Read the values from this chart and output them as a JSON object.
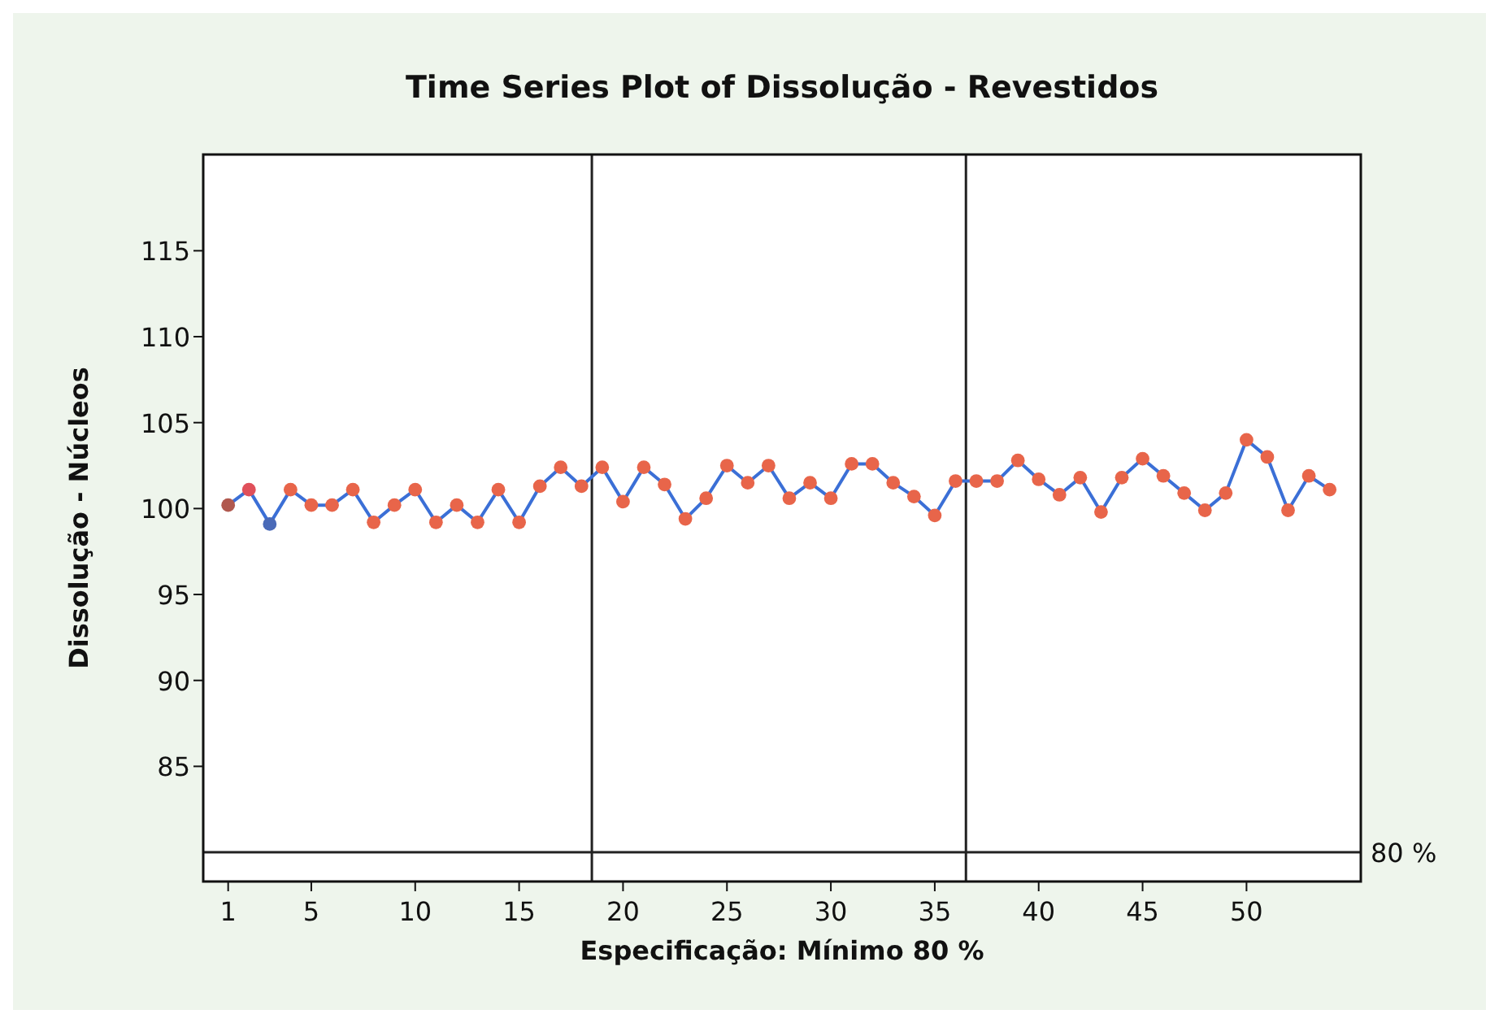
{
  "chart_data": {
    "type": "line",
    "title": "Time Series Plot of Dissolução - Revestidos",
    "xlabel": "Especificação: Mínimo 80 %",
    "ylabel": "Dissolução - Núcleos",
    "x": [
      1,
      2,
      3,
      4,
      5,
      6,
      7,
      8,
      9,
      10,
      11,
      12,
      13,
      14,
      15,
      16,
      17,
      18,
      19,
      20,
      21,
      22,
      23,
      24,
      25,
      26,
      27,
      28,
      29,
      30,
      31,
      32,
      33,
      34,
      35,
      36,
      37,
      38,
      39,
      40,
      41,
      42,
      43,
      44,
      45,
      46,
      47,
      48,
      49,
      50,
      51,
      52,
      53,
      54
    ],
    "series": [
      {
        "color": "#3b6fd6",
        "colors": [
          "#b0584e",
          "#e0505a",
          "#4a6ab8",
          "#e8654a",
          "#e8654a",
          "#e8654a",
          "#e8654a",
          "#e8654a",
          "#e8654a",
          "#e8654a",
          "#e8654a",
          "#e8654a",
          "#e8654a",
          "#e8654a",
          "#e8654a",
          "#e8654a",
          "#e8654a",
          "#e8654a",
          "#e8654a",
          "#e8654a",
          "#e8654a",
          "#e8654a",
          "#e8654a",
          "#e8654a",
          "#e8654a",
          "#e8654a",
          "#e8654a",
          "#e8654a",
          "#e8654a",
          "#e8654a",
          "#e8654a",
          "#e8654a",
          "#e8654a",
          "#e8654a",
          "#e8654a",
          "#e8654a",
          "#e8654a",
          "#e8654a",
          "#e8654a",
          "#e8654a",
          "#e8654a",
          "#e8654a",
          "#e8654a",
          "#e8654a",
          "#e8654a",
          "#e8654a",
          "#e8654a",
          "#e8654a",
          "#e8654a",
          "#e8654a",
          "#e8654a",
          "#e8654a",
          "#e8654a",
          "#e8654a"
        ],
        "values": [
          100.2,
          101.1,
          99.1,
          101.1,
          100.2,
          100.2,
          101.1,
          99.2,
          100.2,
          101.1,
          99.2,
          100.2,
          99.2,
          101.1,
          99.2,
          101.3,
          102.4,
          101.3,
          102.4,
          100.4,
          102.4,
          101.4,
          99.4,
          100.6,
          102.5,
          101.5,
          102.5,
          100.6,
          101.5,
          100.6,
          102.6,
          102.6,
          101.5,
          100.7,
          99.6,
          101.6,
          101.6,
          101.6,
          102.8,
          101.7,
          100.8,
          101.8,
          99.8,
          101.8,
          102.9,
          101.9,
          100.9,
          99.9,
          100.9,
          104.0,
          103.0,
          99.9,
          101.9,
          101.1
        ]
      }
    ],
    "xlim": [
      -0.2,
      55.5
    ],
    "xticks": [
      1,
      5,
      10,
      15,
      20,
      25,
      30,
      35,
      40,
      45,
      50
    ],
    "ylim": [
      78.3,
      120.6
    ],
    "yticks": [
      85,
      90,
      95,
      100,
      105,
      110,
      115
    ],
    "marker": "circle",
    "line_style": "solid",
    "grid": false,
    "ref_lines": [
      {
        "axis": "x",
        "value": 18.5,
        "label": null,
        "color": "#222222"
      },
      {
        "axis": "x",
        "value": 36.5,
        "label": null,
        "color": "#222222"
      },
      {
        "axis": "y",
        "value": 80,
        "label": "80 %",
        "color": "#222222"
      }
    ]
  }
}
